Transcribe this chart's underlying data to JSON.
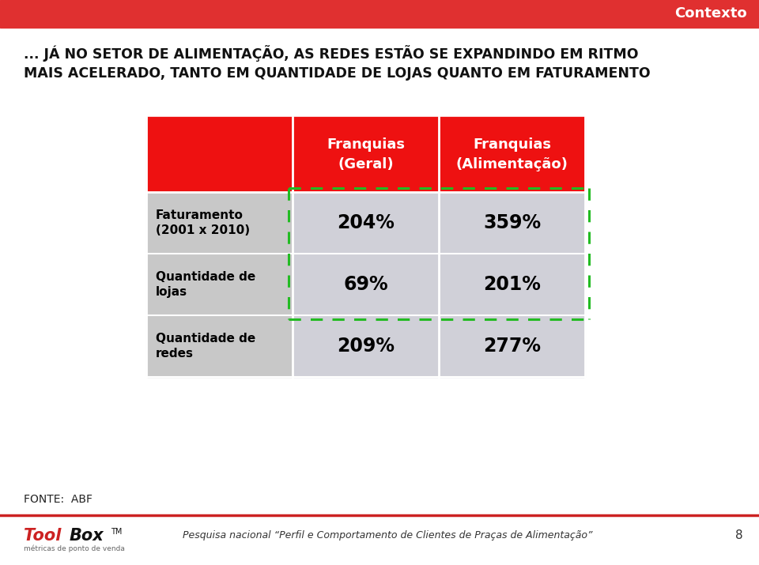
{
  "bg_color": "#ffffff",
  "header_bar_color": "#e03030",
  "header_text": "Contexto",
  "title_line1": "... JÁ NO SETOR DE ALIMENTAÇÃO, AS REDES ESTÃO SE EXPANDINDO EM RITMO",
  "title_line2": "MAIS ACELERADO, TANTO EM QUANTIDADE DE LOJAS QUANTO EM FATURAMENTO",
  "col_headers": [
    "Franquias\n(Geral)",
    "Franquias\n(Alimentação)"
  ],
  "col_header_bg": "#ee1111",
  "col_header_text_color": "#ffffff",
  "row_labels": [
    "Faturamento\n(2001 x 2010)",
    "Quantidade de\nlojas",
    "Quantidade de\nredes"
  ],
  "row_label_bg": "#c8c8c8",
  "row_label_text_color": "#000000",
  "data_values": [
    [
      "204%",
      "359%"
    ],
    [
      "69%",
      "201%"
    ],
    [
      "209%",
      "277%"
    ]
  ],
  "data_bg": "#d0d0d8",
  "data_text_color": "#000000",
  "dashed_border_color": "#22bb22",
  "fonte_text": "FONTE:  ABF",
  "footer_text": "Pesquisa nacional “Perfil e Comportamento de Clientes de Praças de Alimentação”",
  "page_number": "8",
  "footer_line_color": "#cc2222",
  "toolbox_red": "#cc2222",
  "toolbox_black": "#111111"
}
